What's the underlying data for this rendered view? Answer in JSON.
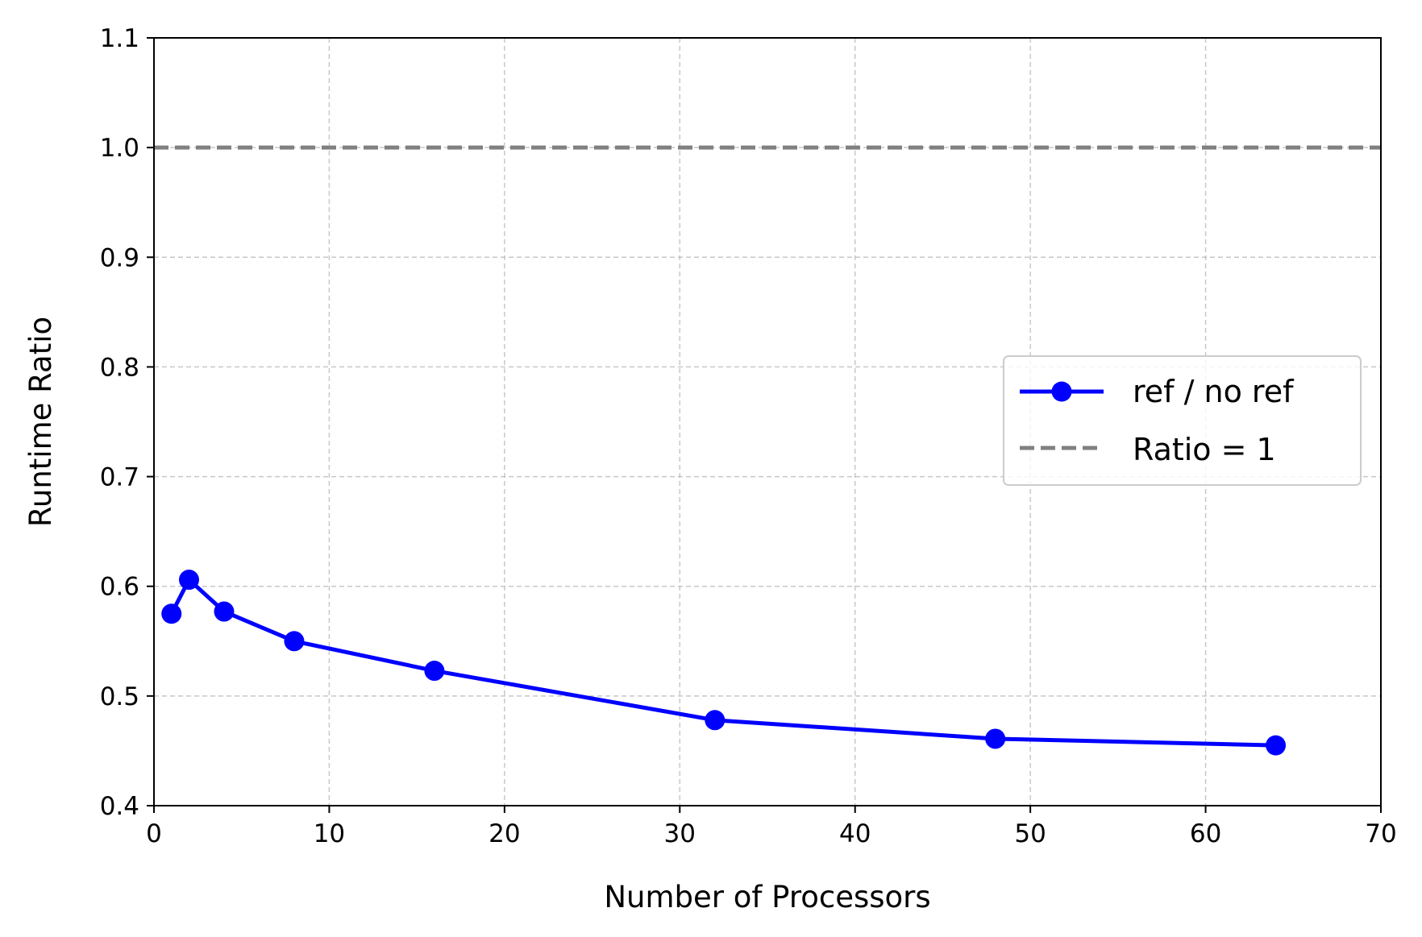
{
  "chart_data": {
    "type": "line",
    "title": "",
    "xlabel": "Number of Processors",
    "ylabel": "Runtime Ratio",
    "xlim": [
      0,
      70
    ],
    "ylim": [
      0.4,
      1.1
    ],
    "xticks": [
      0,
      10,
      20,
      30,
      40,
      50,
      60,
      70
    ],
    "xtick_labels": [
      "0",
      "10",
      "20",
      "30",
      "40",
      "50",
      "60",
      "70"
    ],
    "yticks": [
      0.4,
      0.5,
      0.6,
      0.7,
      0.8,
      0.9,
      1.0,
      1.1
    ],
    "ytick_labels": [
      "0.4",
      "0.5",
      "0.6",
      "0.7",
      "0.8",
      "0.9",
      "1.0",
      "1.1"
    ],
    "grid": true,
    "legend_position": "center-right",
    "series": [
      {
        "name": "ref / no ref",
        "color": "#0000ff",
        "style": "solid-with-circle-markers",
        "x": [
          1,
          2,
          4,
          8,
          16,
          32,
          48,
          64
        ],
        "y": [
          0.575,
          0.606,
          0.577,
          0.55,
          0.523,
          0.478,
          0.461,
          0.455
        ]
      },
      {
        "name": "Ratio = 1",
        "color": "#808080",
        "style": "dashed",
        "x": [
          0,
          70
        ],
        "y": [
          1.0,
          1.0
        ]
      }
    ]
  }
}
